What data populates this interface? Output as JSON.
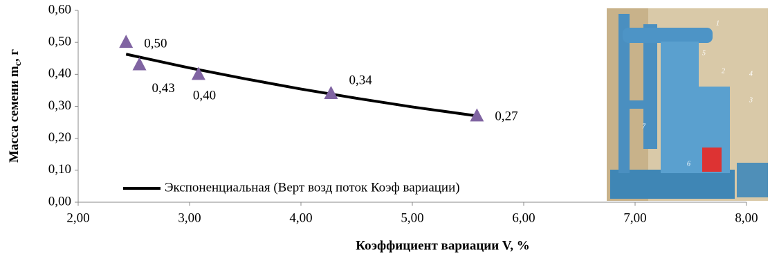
{
  "chart_data": {
    "type": "scatter",
    "x_label": "Коэффициент вариации  V, %",
    "y_label": "Масса семени m",
    "y_label_sub": "c",
    "y_label_unit": ", г",
    "series": [
      {
        "color": "#8064a2",
        "x": [
          2.43,
          2.55,
          3.08,
          4.27,
          5.58
        ],
        "values": [
          0.5,
          0.43,
          0.4,
          0.34,
          0.27
        ],
        "value_labels": [
          "0,50",
          "0,43",
          "0,40",
          "0,34",
          "0,27"
        ]
      }
    ],
    "trendline": {
      "name": "Экспоненциальная (Верт возд поток Коэф вариации)",
      "color": "#000000",
      "x": [
        2.43,
        3.0,
        3.5,
        4.0,
        4.5,
        5.0,
        5.58
      ],
      "values": [
        0.463,
        0.42,
        0.386,
        0.354,
        0.325,
        0.298,
        0.27
      ]
    },
    "xlim": [
      2.0,
      8.0
    ],
    "xticks": [
      {
        "value": 2,
        "label": "2,00"
      },
      {
        "value": 3,
        "label": "3,00"
      },
      {
        "value": 4,
        "label": "4,00"
      },
      {
        "value": 5,
        "label": "5,00"
      },
      {
        "value": 6,
        "label": "6,00"
      },
      {
        "value": 7,
        "label": "7,00"
      },
      {
        "value": 8,
        "label": "8,00"
      }
    ],
    "ylim": [
      0,
      0.6
    ],
    "yticks": [
      {
        "value": 0,
        "label": "0,00"
      },
      {
        "value": 0.1,
        "label": "0,10"
      },
      {
        "value": 0.2,
        "label": "0,20"
      },
      {
        "value": 0.3,
        "label": "0,30"
      },
      {
        "value": 0.4,
        "label": "0,40"
      },
      {
        "value": 0.5,
        "label": "0,50"
      },
      {
        "value": 0.6,
        "label": "0,60"
      }
    ],
    "legend": "lower left",
    "grid": false
  },
  "photo": {
    "labels": [
      "1",
      "2",
      "3",
      "4",
      "5",
      "6",
      "7"
    ]
  }
}
